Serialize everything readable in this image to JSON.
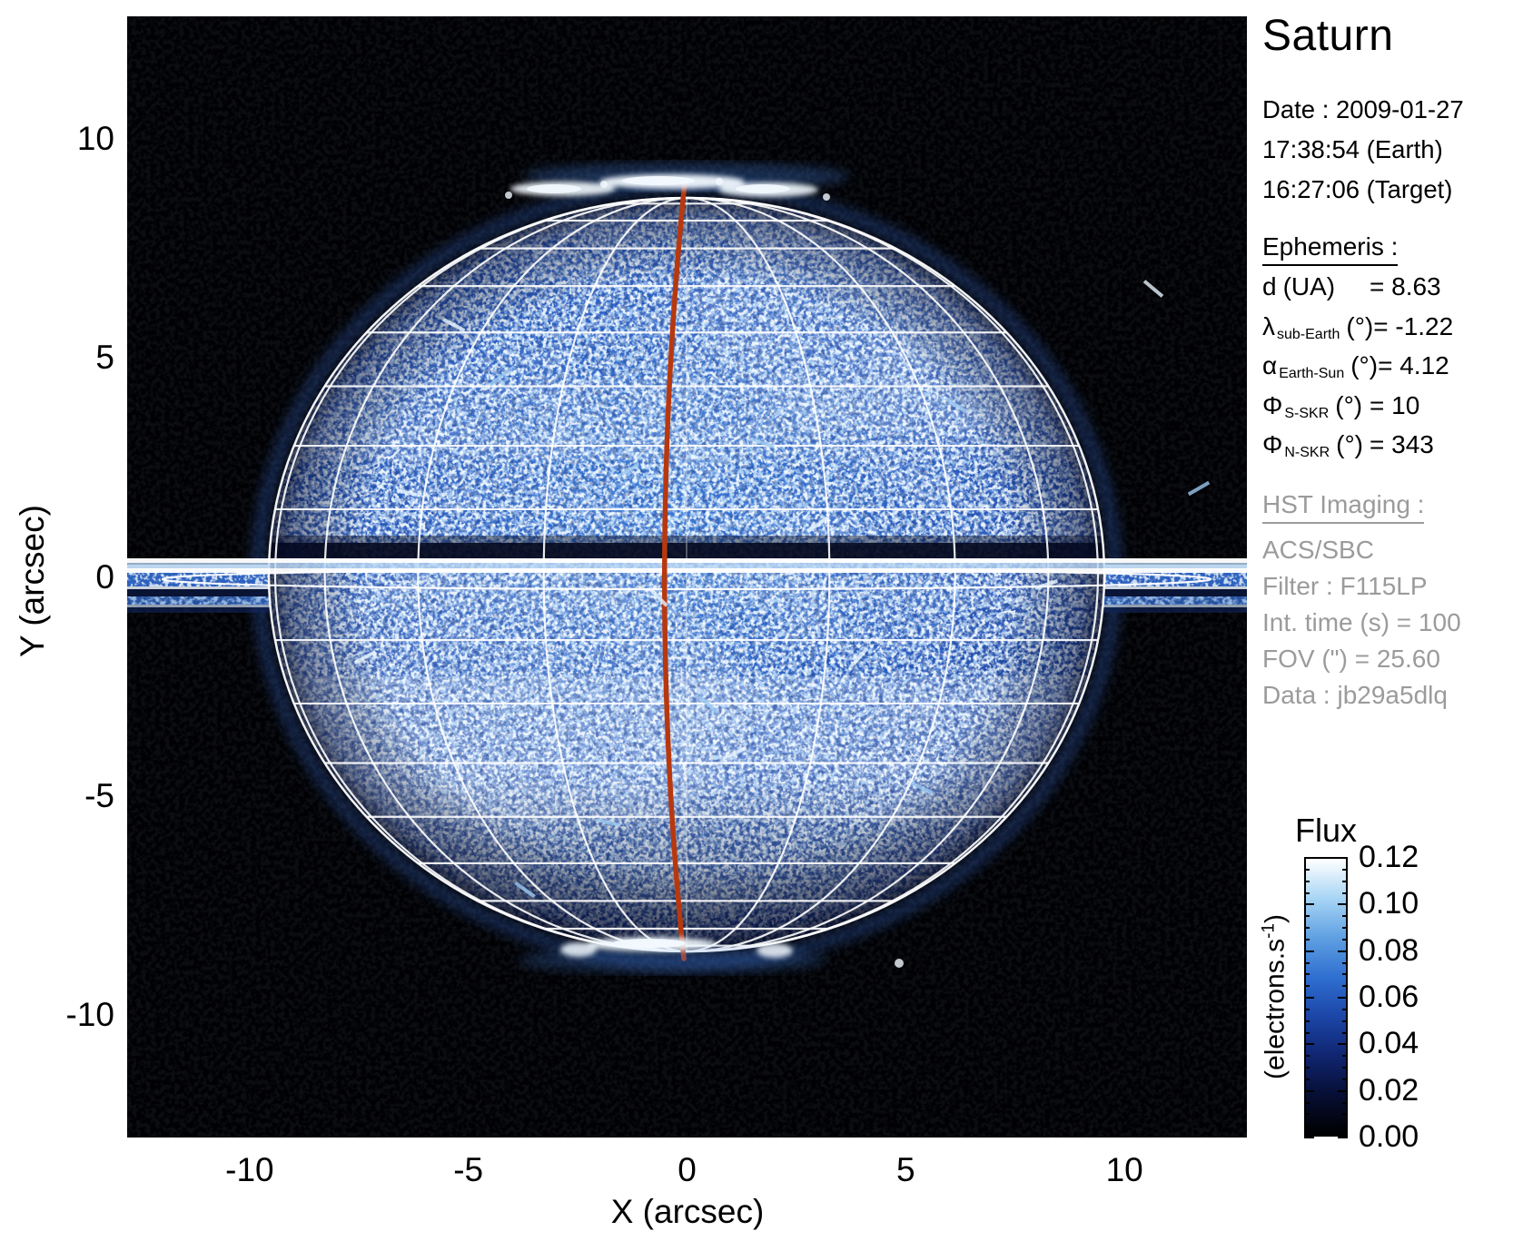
{
  "figure": {
    "title": "Saturn",
    "observation": {
      "date_line": "Date : 2009-01-27",
      "earth_time_line": "17:38:54 (Earth)",
      "target_time_line": "16:27:06 (Target)"
    },
    "ephemeris": {
      "heading": "Ephemeris :",
      "rows": [
        {
          "symbol": "d",
          "subscript": "",
          "unit": "(UA)",
          "value": "= 8.63"
        },
        {
          "symbol": "λ",
          "subscript": "sub-Earth",
          "unit": "(°)",
          "value": "= -1.22"
        },
        {
          "symbol": "α",
          "subscript": "Earth-Sun",
          "unit": "(°)",
          "value": "= 4.12"
        },
        {
          "symbol": "Φ",
          "subscript": "S-SKR",
          "unit": "(°)",
          "value": "= 10"
        },
        {
          "symbol": "Φ",
          "subscript": "N-SKR",
          "unit": "(°)",
          "value": "= 343"
        }
      ]
    },
    "hst": {
      "heading": "HST Imaging :",
      "lines": [
        "ACS/SBC",
        "Filter : F115LP",
        "Int. time (s) = 100",
        "FOV (\") = 25.60",
        "Data : jb29a5dlq"
      ],
      "color": "#9b9b9b"
    }
  },
  "axes": {
    "x_label": "X (arcsec)",
    "y_label": "Y (arcsec)"
  },
  "colorbar": {
    "title": "Flux",
    "unit_prefix": "(electrons.s",
    "unit_sup": "-1",
    "unit_suffix": ")",
    "tick_labels": [
      "0.12",
      "0.10",
      "0.08",
      "0.06",
      "0.04",
      "0.02",
      "0.00"
    ]
  },
  "chart_data": {
    "type": "heatmap",
    "title": "Saturn",
    "xlabel": "X (arcsec)",
    "ylabel": "Y (arcsec)",
    "xlim": [
      -12.8,
      12.8
    ],
    "ylim": [
      -12.8,
      12.8
    ],
    "x_ticks": [
      -10,
      -5,
      0,
      5,
      10
    ],
    "y_ticks": [
      10,
      5,
      0,
      -5,
      -10
    ],
    "grid": {
      "lat_step_deg": 10,
      "lon_step_deg": 20,
      "color": "#ffffff"
    },
    "colorbar": {
      "title": "Flux",
      "unit": "(electrons.s-1)",
      "range": [
        0.0,
        0.12
      ],
      "tick_values": [
        0.12,
        0.1,
        0.08,
        0.06,
        0.04,
        0.02,
        0.0
      ],
      "colormap_low_to_high": [
        "#000000",
        "#060e33",
        "#102570",
        "#1c46a8",
        "#2f6fd0",
        "#5fa0e2",
        "#a8d5f5",
        "#ffffff"
      ]
    },
    "image_content": {
      "target": "Saturn",
      "planet_center_arcsec": [
        0,
        0
      ],
      "equatorial_radius_arcsec": 9.6,
      "polar_radius_arcsec": 8.7,
      "ring_plane_y_arcsec": 0,
      "rings": "edge-on bright double white line spanning the full field width, with flat inner-ring ellipse outline",
      "overlays": [
        "white latitude/longitude grid on planet disk",
        "red central meridian line",
        "dark ring-shadow band just north of the equator",
        "bright auroral patches at north and south poles"
      ],
      "datetime": {
        "date": "2009-01-27",
        "earth_time": "17:38:54",
        "target_time": "16:27:06"
      },
      "ephemeris_values": {
        "d_UA": 8.63,
        "lambda_subEarth_deg": -1.22,
        "alpha_EarthSun_deg": 4.12,
        "phi_S_SKR_deg": 10,
        "phi_N_SKR_deg": 343
      },
      "hst_imaging": {
        "instrument": "ACS/SBC",
        "filter": "F115LP",
        "int_time_s": 100,
        "fov_arcsec": 25.6,
        "data_id": "jb29a5dlq"
      }
    }
  }
}
